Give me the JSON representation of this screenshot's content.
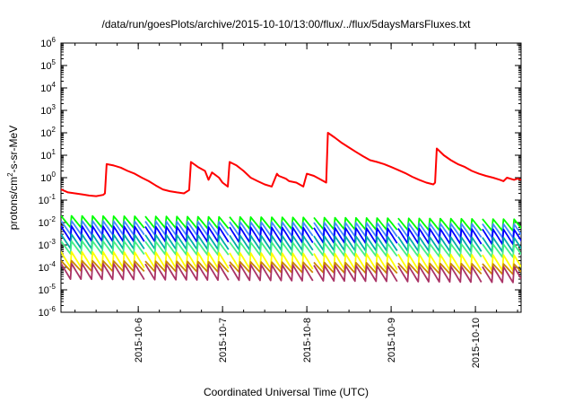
{
  "chart_data": {
    "type": "line",
    "title": "/data/run/goesPlots/archive/2015-10-10/13:00/flux/../flux/5daysMarsFluxes.txt",
    "xlabel": "Coordinated Universal Time (UTC)",
    "ylabel": {
      "prefix": "protons/cm",
      "sup": "2",
      "suffix": "-s-sr-MeV"
    },
    "y_scale": "log",
    "ylim": [
      1e-06,
      1000000.0
    ],
    "y_ticks": [
      {
        "base": "10",
        "exp": "-6",
        "value": 1e-06
      },
      {
        "base": "10",
        "exp": "-5",
        "value": 1e-05
      },
      {
        "base": "10",
        "exp": "-4",
        "value": 0.0001
      },
      {
        "base": "10",
        "exp": "-3",
        "value": 0.001
      },
      {
        "base": "10",
        "exp": "-2",
        "value": 0.01
      },
      {
        "base": "10",
        "exp": "-1",
        "value": 0.1
      },
      {
        "base": "10",
        "exp": "0",
        "value": 1
      },
      {
        "base": "10",
        "exp": "1",
        "value": 10
      },
      {
        "base": "10",
        "exp": "2",
        "value": 100
      },
      {
        "base": "10",
        "exp": "3",
        "value": 1000
      },
      {
        "base": "10",
        "exp": "4",
        "value": 10000
      },
      {
        "base": "10",
        "exp": "5",
        "value": 100000
      },
      {
        "base": "10",
        "exp": "6",
        "value": 1000000
      }
    ],
    "xlim": [
      "2015-10-05T02:00",
      "2015-10-10T13:00"
    ],
    "x_ticks": [
      {
        "label": "2015-10-6",
        "date": "2015-10-06T00:00"
      },
      {
        "label": "2015-10-7",
        "date": "2015-10-07T00:00"
      },
      {
        "label": "2015-10-8",
        "date": "2015-10-08T00:00"
      },
      {
        "label": "2015-10-9",
        "date": "2015-10-09T00:00"
      },
      {
        "label": "2015-10-10",
        "date": "2015-10-10T00:00"
      }
    ],
    "grid": false,
    "legend": "none",
    "series": [
      {
        "color": "#ff0000",
        "kind": "points",
        "x": [
          "2015-10-05T02:00",
          "2015-10-05T04:00",
          "2015-10-05T06:00",
          "2015-10-05T08:00",
          "2015-10-05T10:00",
          "2015-10-05T12:00",
          "2015-10-05T14:00",
          "2015-10-05T14:30",
          "2015-10-05T15:00",
          "2015-10-05T17:00",
          "2015-10-05T19:00",
          "2015-10-05T21:00",
          "2015-10-05T23:00",
          "2015-10-06T01:00",
          "2015-10-06T03:00",
          "2015-10-06T05:00",
          "2015-10-06T07:00",
          "2015-10-06T09:00",
          "2015-10-06T11:00",
          "2015-10-06T13:00",
          "2015-10-06T14:30",
          "2015-10-06T15:00",
          "2015-10-06T17:00",
          "2015-10-06T19:00",
          "2015-10-06T20:00",
          "2015-10-06T21:00",
          "2015-10-06T23:00",
          "2015-10-07T00:00",
          "2015-10-07T01:30",
          "2015-10-07T02:00",
          "2015-10-07T04:00",
          "2015-10-07T06:00",
          "2015-10-07T08:00",
          "2015-10-07T10:00",
          "2015-10-07T12:00",
          "2015-10-07T14:00",
          "2015-10-07T15:30",
          "2015-10-07T16:00",
          "2015-10-07T18:00",
          "2015-10-07T19:00",
          "2015-10-07T21:00",
          "2015-10-07T23:00",
          "2015-10-08T00:00",
          "2015-10-08T02:00",
          "2015-10-08T03:30",
          "2015-10-08T05:30",
          "2015-10-08T06:00",
          "2015-10-08T08:00",
          "2015-10-08T10:00",
          "2015-10-08T12:00",
          "2015-10-08T14:00",
          "2015-10-08T16:00",
          "2015-10-08T18:00",
          "2015-10-08T20:00",
          "2015-10-08T22:00",
          "2015-10-09T00:00",
          "2015-10-09T02:00",
          "2015-10-09T04:00",
          "2015-10-09T06:00",
          "2015-10-09T08:00",
          "2015-10-09T10:00",
          "2015-10-09T12:00",
          "2015-10-09T12:30",
          "2015-10-09T13:00",
          "2015-10-09T15:00",
          "2015-10-09T17:00",
          "2015-10-09T19:00",
          "2015-10-09T21:00",
          "2015-10-09T23:00",
          "2015-10-10T01:00",
          "2015-10-10T03:00",
          "2015-10-10T05:00",
          "2015-10-10T07:00",
          "2015-10-10T08:00",
          "2015-10-10T09:00",
          "2015-10-10T11:00",
          "2015-10-10T12:00",
          "2015-10-10T13:00"
        ],
        "y": [
          0.3,
          0.22,
          0.2,
          0.18,
          0.16,
          0.15,
          0.17,
          0.2,
          4.0,
          3.5,
          2.8,
          2.0,
          1.5,
          1.0,
          0.7,
          0.45,
          0.3,
          0.25,
          0.22,
          0.2,
          0.28,
          5.0,
          3.0,
          2.0,
          0.8,
          1.7,
          1.0,
          0.6,
          0.4,
          5.0,
          3.5,
          2.0,
          1.0,
          0.7,
          0.5,
          0.4,
          1.5,
          1.2,
          0.9,
          0.7,
          0.6,
          0.4,
          1.5,
          1.2,
          0.9,
          0.6,
          100,
          60,
          35,
          22,
          14,
          9,
          6,
          5,
          4,
          3,
          2.2,
          1.6,
          1.1,
          0.8,
          0.6,
          0.5,
          0.6,
          20,
          10,
          6,
          4,
          3,
          2,
          1.5,
          1.2,
          1.0,
          0.8,
          0.7,
          1.0,
          0.8,
          0.9,
          0.8
        ]
      },
      {
        "color": "#00ff00",
        "kind": "sawtooth",
        "period_hours": 3,
        "first_cycle": "2015-10-05T02:00",
        "gaps": [
          "2015-10-06T00:00",
          "2015-10-07T00:00",
          "2015-10-08T00:00",
          "2015-10-09T00:00",
          "2015-10-10T00:00"
        ],
        "y_low": 0.006,
        "y_high": 0.02,
        "trend_end_factor": 0.7
      },
      {
        "color": "#4488ff",
        "kind": "sawtooth",
        "period_hours": 3,
        "first_cycle": "2015-10-05T02:00",
        "gaps": [
          "2015-10-06T00:00",
          "2015-10-07T00:00",
          "2015-10-08T00:00",
          "2015-10-09T00:00",
          "2015-10-10T00:00"
        ],
        "y_low": 0.003,
        "y_high": 0.012,
        "trend_end_factor": 0.7
      },
      {
        "color": "#0000ff",
        "kind": "sawtooth",
        "period_hours": 3,
        "first_cycle": "2015-10-05T02:00",
        "gaps": [
          "2015-10-06T00:00",
          "2015-10-07T00:00",
          "2015-10-08T00:00",
          "2015-10-09T00:00",
          "2015-10-10T00:00"
        ],
        "y_low": 0.0015,
        "y_high": 0.007,
        "trend_end_factor": 0.7
      },
      {
        "color": "#00aaaa",
        "kind": "sawtooth",
        "period_hours": 3,
        "first_cycle": "2015-10-05T02:00",
        "gaps": [
          "2015-10-06T00:00",
          "2015-10-07T00:00",
          "2015-10-08T00:00",
          "2015-10-09T00:00",
          "2015-10-10T00:00"
        ],
        "y_low": 0.0007,
        "y_high": 0.003,
        "trend_end_factor": 0.7
      },
      {
        "color": "#44ee88",
        "kind": "sawtooth",
        "period_hours": 3,
        "first_cycle": "2015-10-05T02:00",
        "gaps": [
          "2015-10-06T00:00",
          "2015-10-07T00:00",
          "2015-10-08T00:00",
          "2015-10-09T00:00",
          "2015-10-10T00:00"
        ],
        "y_low": 0.0004,
        "y_high": 0.0015,
        "trend_end_factor": 0.7
      },
      {
        "color": "#ffff00",
        "kind": "sawtooth",
        "period_hours": 3,
        "first_cycle": "2015-10-05T02:00",
        "gaps": [
          "2015-10-06T00:00",
          "2015-10-07T00:00",
          "2015-10-08T00:00",
          "2015-10-09T00:00",
          "2015-10-10T00:00"
        ],
        "y_low": 0.0001,
        "y_high": 0.0005,
        "trend_end_factor": 0.7
      },
      {
        "color": "#cc8800",
        "kind": "sawtooth",
        "period_hours": 3,
        "first_cycle": "2015-10-05T02:00",
        "gaps": [
          "2015-10-06T00:00",
          "2015-10-07T00:00",
          "2015-10-08T00:00",
          "2015-10-09T00:00",
          "2015-10-10T00:00"
        ],
        "y_low": 7e-05,
        "y_high": 0.0002,
        "trend_end_factor": 0.7
      },
      {
        "color": "#aa3366",
        "kind": "sawtooth",
        "period_hours": 3,
        "first_cycle": "2015-10-05T02:00",
        "gaps": [
          "2015-10-06T00:00",
          "2015-10-07T00:00",
          "2015-10-08T00:00",
          "2015-10-09T00:00",
          "2015-10-10T00:00"
        ],
        "y_low": 3e-05,
        "y_high": 0.00015,
        "trend_end_factor": 0.7
      }
    ]
  }
}
